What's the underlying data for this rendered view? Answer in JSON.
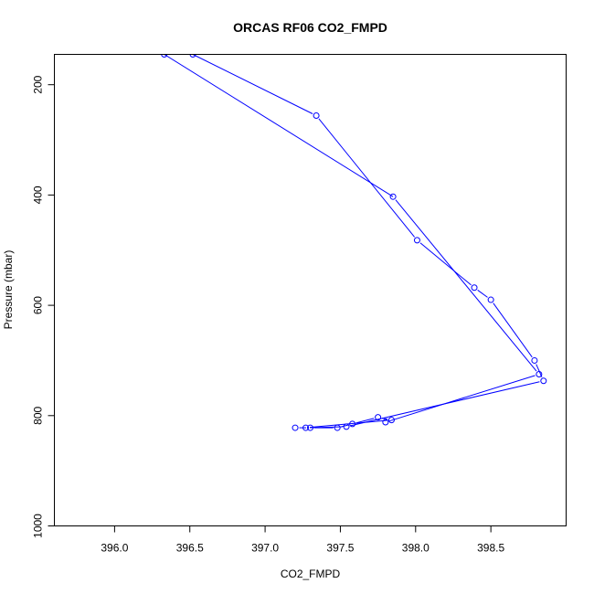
{
  "chart_data": {
    "type": "line",
    "title": "ORCAS RF06 CO2_FMPD",
    "xlabel": "CO2_FMPD",
    "ylabel": "Pressure (mbar)",
    "xlim": [
      395.6,
      399.0
    ],
    "ylim": [
      1000,
      145
    ],
    "y_reversed": true,
    "x_ticks": [
      396.0,
      396.5,
      397.0,
      397.5,
      398.0,
      398.5
    ],
    "x_tick_labels": [
      "396.0",
      "396.5",
      "397.0",
      "397.5",
      "398.0",
      "398.5"
    ],
    "y_ticks": [
      200,
      400,
      600,
      800,
      1000
    ],
    "y_tick_labels": [
      "200",
      "400",
      "600",
      "800",
      "1000"
    ],
    "grid": false,
    "series_color": "#0000ff",
    "marker": "open-circle",
    "series": [
      {
        "x": [
          397.2,
          397.3,
          397.48,
          397.58,
          397.75,
          397.84,
          397.27,
          397.54,
          398.85,
          398.79,
          398.5,
          398.39,
          398.01,
          397.34,
          396.52
        ],
        "y": [
          822,
          822,
          822,
          815,
          803,
          808,
          822,
          820,
          737,
          700,
          590,
          568,
          482,
          256,
          145
        ]
      },
      {
        "x": [
          396.33,
          397.85,
          398.82,
          397.8
        ],
        "y": [
          145,
          403,
          725,
          812
        ]
      }
    ]
  }
}
